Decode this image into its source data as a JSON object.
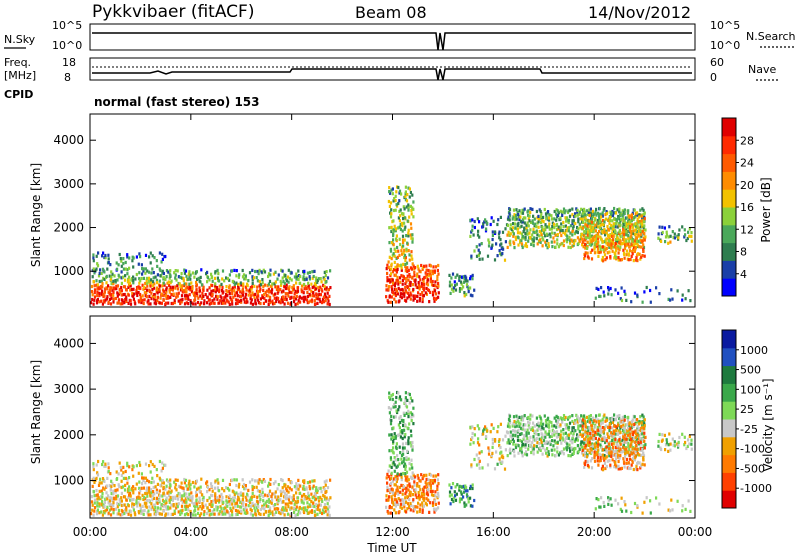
{
  "header": {
    "station": "Pykkvibaer (fitACF)",
    "beam": "Beam 08",
    "date": "14/Nov/2012"
  },
  "noise_panel": {
    "left_label": "N.Sky",
    "left_ticks": [
      "10^5",
      "10^0"
    ],
    "right_ticks": [
      "10^5",
      "10^0"
    ],
    "right_label": "N.Search"
  },
  "freq_panel": {
    "left_label_1": "Freq.",
    "left_label_2": "[MHz]",
    "left_ticks": [
      "18",
      "8"
    ],
    "right_ticks": [
      "60",
      "0"
    ],
    "right_label": "Nave",
    "cpid_label": "CPID",
    "mode_text": "normal (fast stereo) 153"
  },
  "colors": {
    "power_scale": [
      "#0000ff",
      "#1a3fa8",
      "#2e7d4f",
      "#4aa85a",
      "#8bd13a",
      "#f2c200",
      "#ff8c00",
      "#ff5a00",
      "#ff2a00",
      "#e00000"
    ],
    "velocity_scale": [
      "#0a1aa0",
      "#2050c0",
      "#1e7a3e",
      "#3aa84a",
      "#7ed957",
      "#c8c8c8",
      "#f0a000",
      "#ff7a00",
      "#ff4000",
      "#e00000"
    ]
  },
  "chart_data": [
    {
      "type": "heatmap",
      "name": "power",
      "ylabel": "Slant Range [km]",
      "yticks": [
        "1000",
        "2000",
        "3000",
        "4000"
      ],
      "colorbar_label": "Power [dB]",
      "colorbar_ticks": [
        "4",
        "8",
        "12",
        "16",
        "20",
        "24",
        "28"
      ],
      "ylim": [
        180,
        4600
      ],
      "clim": [
        0,
        32
      ]
    },
    {
      "type": "heatmap",
      "name": "velocity",
      "ylabel": "Slant Range [km]",
      "yticks": [
        "1000",
        "2000",
        "3000",
        "4000"
      ],
      "colorbar_label": "Velocity [m s⁻¹]",
      "colorbar_ticks": [
        "1000",
        "500",
        "100",
        "25",
        "-25",
        "-100",
        "-500",
        "-1000"
      ],
      "ylim": [
        180,
        4600
      ]
    }
  ],
  "xaxis": {
    "tick_labels": [
      "00:00",
      "04:00",
      "08:00",
      "12:00",
      "16:00",
      "20:00",
      "00:00"
    ],
    "label": "Time UT",
    "xlim_hours": [
      0,
      24
    ]
  }
}
